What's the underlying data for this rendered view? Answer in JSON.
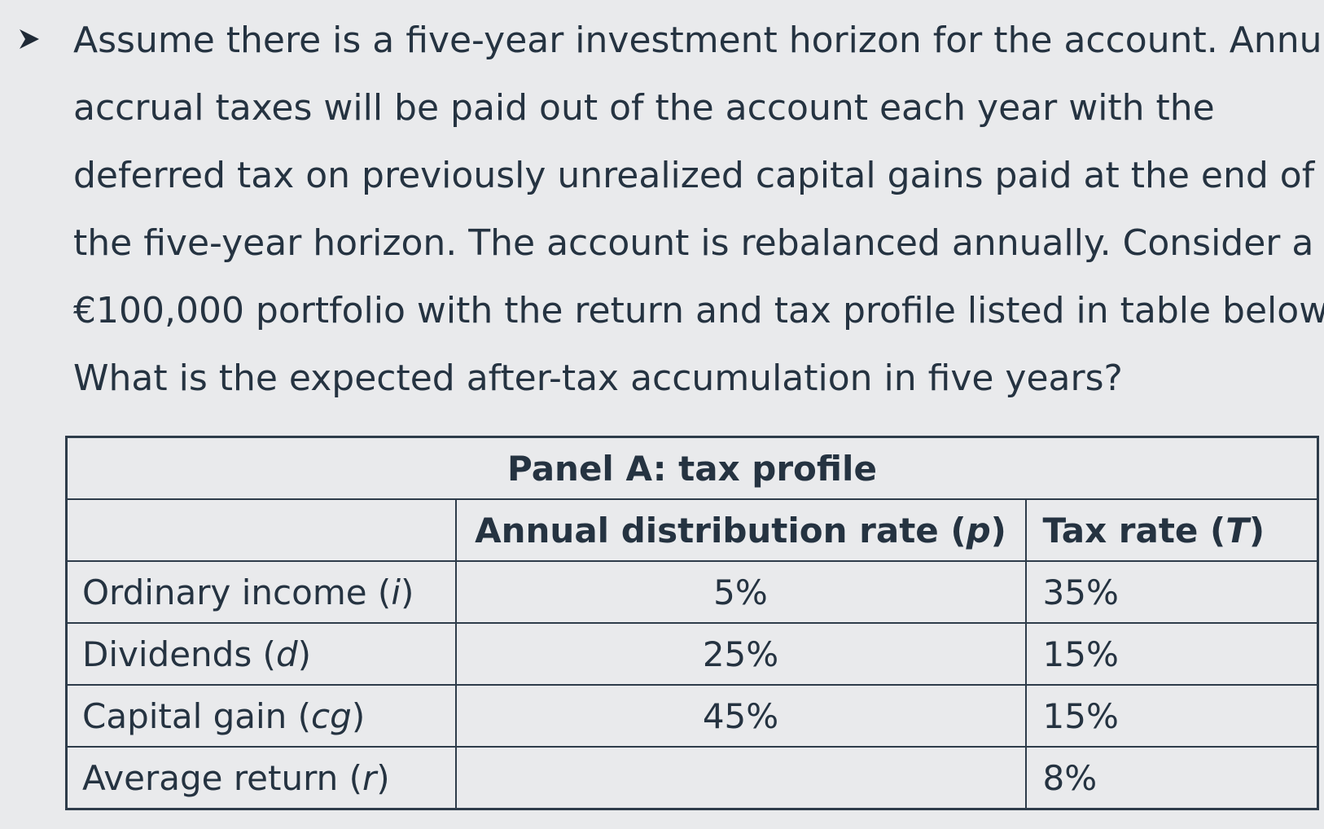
{
  "question": {
    "lines": [
      "Assume there is a five-year investment horizon for the account. Annual",
      "accrual taxes will be paid out of the account each year with the",
      "deferred tax on previously unrealized capital gains paid at the end of",
      "the five-year horizon. The account is rebalanced annually. Consider a",
      "€100,000 portfolio with the return and tax profile listed in table below.",
      "What is the expected after-tax accumulation in five years?"
    ]
  },
  "table": {
    "panel_title": "Panel A: tax profile",
    "headers": {
      "col1": "",
      "col2_text": "Annual distribution rate (",
      "col2_symbol": "p",
      "col2_close": ")",
      "col3_text": "Tax rate (",
      "col3_symbol": "T",
      "col3_close": ")"
    },
    "rows": [
      {
        "label": "Ordinary income (",
        "symbol": "i",
        "close": ")",
        "distribution": "5%",
        "tax": "35%"
      },
      {
        "label": "Dividends (",
        "symbol": "d",
        "close": ")",
        "distribution": "25%",
        "tax": "15%"
      },
      {
        "label": "Capital gain (",
        "symbol": "cg",
        "close": ")",
        "distribution": "45%",
        "tax": "15%"
      },
      {
        "label": "Average return (",
        "symbol": "r",
        "close": ")",
        "distribution": "",
        "tax": "8%"
      }
    ]
  }
}
